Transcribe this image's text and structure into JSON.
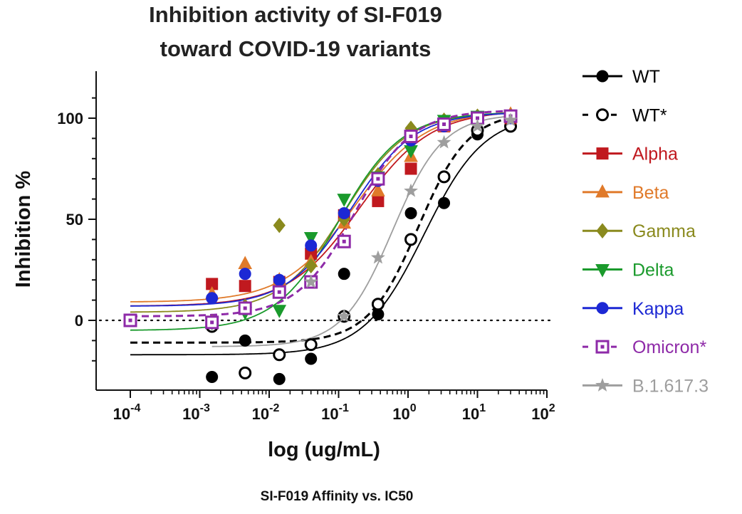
{
  "chart_data": {
    "type": "scatter",
    "title_lines": [
      "Inhibition activity of SI-F019",
      "toward COVID-19 variants"
    ],
    "xlabel": "log (ug/mL)",
    "ylabel": "Inhibition %",
    "x_scale": "log",
    "xlim": [
      4e-05,
      100
    ],
    "ylim": [
      -30,
      120
    ],
    "x_ticks": [
      {
        "base": "10",
        "exp": "-4"
      },
      {
        "base": "10",
        "exp": "-3"
      },
      {
        "base": "10",
        "exp": "-2"
      },
      {
        "base": "10",
        "exp": "-1"
      },
      {
        "base": "10",
        "exp": "0"
      },
      {
        "base": "10",
        "exp": "1"
      },
      {
        "base": "10",
        "exp": "2"
      }
    ],
    "y_ticks": [
      "0",
      "50",
      "100"
    ],
    "reference_line": {
      "y": 0,
      "style": "dotted"
    },
    "legend_position": "right",
    "footer": "SI-F019 Affinity vs. IC50",
    "series": [
      {
        "name": "WT",
        "color": "#000000",
        "marker": "circle",
        "filled": true,
        "line": "solid",
        "points": [
          [
            0.0001,
            0
          ],
          [
            0.0015,
            -28
          ],
          [
            0.0045,
            -10
          ],
          [
            0.014,
            -29
          ],
          [
            0.04,
            -19
          ],
          [
            0.12,
            23
          ],
          [
            0.37,
            3
          ],
          [
            1.1,
            53
          ],
          [
            3.3,
            58
          ],
          [
            10,
            92
          ],
          [
            30,
            99
          ]
        ],
        "fit": {
          "bottom": -17,
          "top": 102,
          "ec50": 1.7,
          "hill": 1.0
        }
      },
      {
        "name": "WT*",
        "color": "#000000",
        "marker": "circle",
        "filled": false,
        "line": "dashed",
        "points": [
          [
            0.0015,
            -3
          ],
          [
            0.0045,
            -26
          ],
          [
            0.014,
            -17
          ],
          [
            0.04,
            -12
          ],
          [
            0.12,
            2
          ],
          [
            0.37,
            8
          ],
          [
            1.1,
            40
          ],
          [
            3.3,
            71
          ],
          [
            10,
            94
          ],
          [
            30,
            96
          ]
        ],
        "fit": {
          "bottom": -11,
          "top": 103,
          "ec50": 1.4,
          "hill": 1.2
        }
      },
      {
        "name": "Alpha",
        "color": "#c0191f",
        "marker": "square",
        "filled": true,
        "line": "solid",
        "points": [
          [
            0.0001,
            0
          ],
          [
            0.0015,
            18
          ],
          [
            0.0045,
            17
          ],
          [
            0.014,
            19
          ],
          [
            0.04,
            33
          ],
          [
            0.12,
            52
          ],
          [
            0.37,
            59
          ],
          [
            1.1,
            75
          ],
          [
            3.3,
            96
          ],
          [
            10,
            100
          ],
          [
            30,
            100
          ]
        ],
        "fit": {
          "bottom": 7,
          "top": 104,
          "ec50": 0.2,
          "hill": 0.85
        }
      },
      {
        "name": "Beta",
        "color": "#e07a2a",
        "marker": "triangle-up",
        "filled": true,
        "line": "solid",
        "points": [
          [
            0.0015,
            13
          ],
          [
            0.0045,
            28
          ],
          [
            0.014,
            20
          ],
          [
            0.04,
            29
          ],
          [
            0.12,
            48
          ],
          [
            0.37,
            64
          ],
          [
            1.1,
            81
          ],
          [
            3.3,
            96
          ],
          [
            10,
            100
          ],
          [
            30,
            102
          ]
        ],
        "fit": {
          "bottom": 9,
          "top": 104,
          "ec50": 0.17,
          "hill": 0.85
        }
      },
      {
        "name": "Gamma",
        "color": "#8a8a1e",
        "marker": "diamond",
        "filled": true,
        "line": "solid",
        "points": [
          [
            0.0015,
            -1
          ],
          [
            0.0045,
            7
          ],
          [
            0.014,
            47
          ],
          [
            0.04,
            27
          ],
          [
            0.12,
            50
          ],
          [
            0.37,
            72
          ],
          [
            1.1,
            95
          ],
          [
            3.3,
            99
          ],
          [
            10,
            101
          ],
          [
            30,
            101
          ]
        ],
        "fit": {
          "bottom": 4,
          "top": 103,
          "ec50": 0.12,
          "hill": 0.95
        }
      },
      {
        "name": "Delta",
        "color": "#1a9a2c",
        "marker": "triangle-down",
        "filled": true,
        "line": "solid",
        "points": [
          [
            0.0015,
            -1
          ],
          [
            0.0045,
            4
          ],
          [
            0.014,
            5
          ],
          [
            0.04,
            41
          ],
          [
            0.12,
            60
          ],
          [
            0.37,
            71
          ],
          [
            1.1,
            84
          ],
          [
            3.3,
            99
          ],
          [
            10,
            101
          ],
          [
            30,
            101
          ]
        ],
        "fit": {
          "bottom": -5,
          "top": 103,
          "ec50": 0.1,
          "hill": 0.95
        }
      },
      {
        "name": "Kappa",
        "color": "#1c28d4",
        "marker": "circle",
        "filled": true,
        "line": "solid",
        "points": [
          [
            0.0015,
            11
          ],
          [
            0.0045,
            23
          ],
          [
            0.014,
            20
          ],
          [
            0.04,
            37
          ],
          [
            0.12,
            53
          ],
          [
            0.37,
            69
          ],
          [
            1.1,
            89
          ],
          [
            3.3,
            96
          ],
          [
            10,
            100
          ],
          [
            30,
            100
          ]
        ],
        "fit": {
          "bottom": 7,
          "top": 103,
          "ec50": 0.15,
          "hill": 0.95
        }
      },
      {
        "name": "Omicron*",
        "color": "#8e2aa8",
        "marker": "square",
        "filled": false,
        "line": "dashed",
        "points": [
          [
            0.0001,
            0
          ],
          [
            0.0015,
            -1
          ],
          [
            0.0045,
            6
          ],
          [
            0.014,
            14
          ],
          [
            0.04,
            19
          ],
          [
            0.12,
            39
          ],
          [
            0.37,
            70
          ],
          [
            1.1,
            91
          ],
          [
            3.3,
            97
          ],
          [
            10,
            100
          ],
          [
            30,
            101
          ]
        ],
        "fit": {
          "bottom": 2,
          "top": 104,
          "ec50": 0.17,
          "hill": 1.05
        }
      },
      {
        "name": "B.1.617.3",
        "color": "#9e9e9e",
        "marker": "star",
        "filled": true,
        "line": "solid",
        "points": [
          [
            0.04,
            19
          ],
          [
            0.12,
            2
          ],
          [
            0.37,
            31
          ],
          [
            1.1,
            64
          ],
          [
            3.3,
            88
          ],
          [
            10,
            96
          ],
          [
            30,
            99
          ]
        ],
        "fit": {
          "bottom": -13,
          "top": 102,
          "ec50": 0.6,
          "hill": 1.2
        }
      }
    ]
  }
}
